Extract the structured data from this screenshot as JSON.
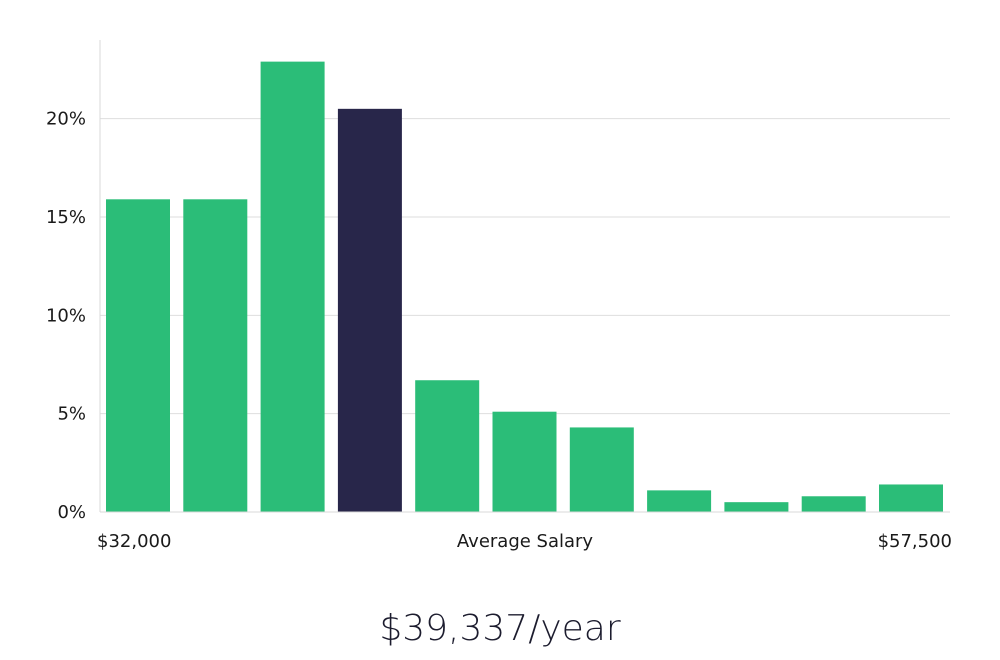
{
  "chart_data": {
    "type": "bar",
    "xlabel": "Average Salary",
    "x_min_label": "$32,000",
    "x_max_label": "$57,500",
    "y_tick_labels": [
      "0%",
      "5%",
      "10%",
      "15%",
      "20%"
    ],
    "y_ticks": [
      0,
      5,
      10,
      15,
      20
    ],
    "ylim": [
      0,
      24
    ],
    "grid": true,
    "values": [
      15.9,
      15.9,
      22.9,
      20.5,
      6.7,
      5.1,
      4.3,
      1.1,
      0.5,
      0.8,
      1.4
    ],
    "highlight_index": 3,
    "colors": {
      "bar": "#2bbd78",
      "highlight": "#28264a",
      "grid": "#dedede",
      "axis": "#d8d8d8"
    }
  },
  "summary": {
    "salary": "$39,337/year"
  }
}
